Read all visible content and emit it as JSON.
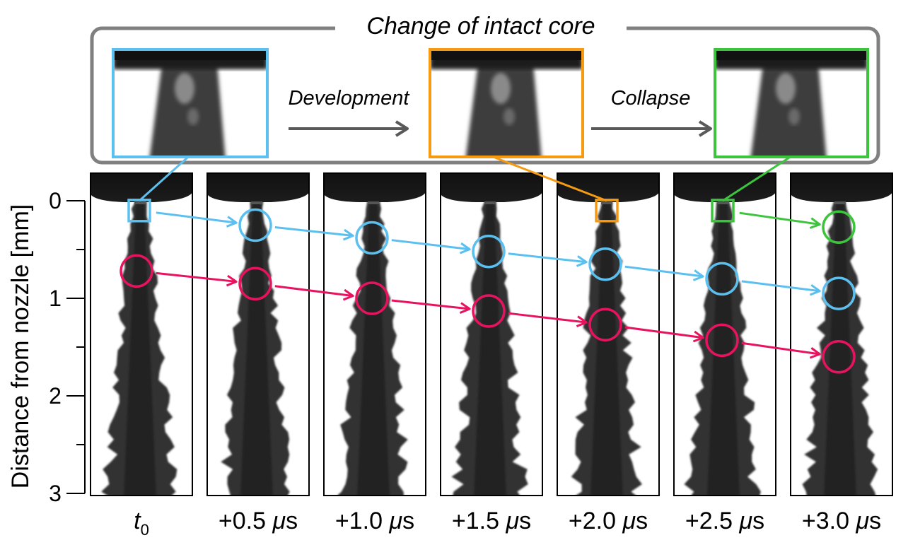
{
  "figure": {
    "title": "Change of intact core",
    "stages": [
      {
        "label": "Development"
      },
      {
        "label": "Collapse"
      }
    ],
    "insets": [
      {
        "name": "inset-t0",
        "color": "#5bc0f0",
        "panel_index": 0
      },
      {
        "name": "inset-2us",
        "color": "#f59a12",
        "panel_index": 4
      },
      {
        "name": "inset-2.5us",
        "color": "#3cc43c",
        "panel_index": 5
      }
    ],
    "colors": {
      "blue": "#5bc0f0",
      "pink": "#e8135e",
      "orange": "#f59a12",
      "green": "#3cc43c",
      "frame_gray": "#808080",
      "arrow_gray": "#595959"
    }
  },
  "axis": {
    "title": "Distance from nozzle [mm]",
    "ylim": [
      0,
      3
    ],
    "major_ticks": [
      0,
      1,
      2,
      3
    ],
    "minor_ticks": [
      0.5,
      1.5,
      2.5
    ],
    "tick_labels": [
      "0",
      "1",
      "2",
      "3"
    ]
  },
  "panels": [
    {
      "time_prefix": "t",
      "time_sub": "0",
      "time_unit": ""
    },
    {
      "time_prefix": "+0.5 ",
      "time_sub": "",
      "time_unit": "μs"
    },
    {
      "time_prefix": "+1.0 ",
      "time_sub": "",
      "time_unit": "μs"
    },
    {
      "time_prefix": "+1.5 ",
      "time_sub": "",
      "time_unit": "μs"
    },
    {
      "time_prefix": "+2.0 ",
      "time_sub": "",
      "time_unit": "μs"
    },
    {
      "time_prefix": "+2.5 ",
      "time_sub": "",
      "time_unit": "μs"
    },
    {
      "time_prefix": "+3.0 ",
      "time_sub": "",
      "time_unit": "μs"
    }
  ],
  "tracks": [
    {
      "name": "blue-track",
      "color": "#5bc0f0",
      "markers": [
        {
          "panel": 0,
          "mm": 0.1,
          "shape": "square"
        },
        {
          "panel": 1,
          "mm": 0.25,
          "shape": "circle"
        },
        {
          "panel": 2,
          "mm": 0.38,
          "shape": "circle"
        },
        {
          "panel": 3,
          "mm": 0.52,
          "shape": "circle"
        },
        {
          "panel": 4,
          "mm": 0.65,
          "shape": "circle"
        },
        {
          "panel": 5,
          "mm": 0.8,
          "shape": "circle"
        },
        {
          "panel": 6,
          "mm": 0.95,
          "shape": "circle"
        }
      ]
    },
    {
      "name": "pink-track",
      "color": "#e8135e",
      "markers": [
        {
          "panel": 0,
          "mm": 0.72,
          "shape": "circle"
        },
        {
          "panel": 1,
          "mm": 0.85,
          "shape": "circle"
        },
        {
          "panel": 2,
          "mm": 1.0,
          "shape": "circle"
        },
        {
          "panel": 3,
          "mm": 1.13,
          "shape": "circle"
        },
        {
          "panel": 4,
          "mm": 1.27,
          "shape": "circle"
        },
        {
          "panel": 5,
          "mm": 1.43,
          "shape": "circle"
        },
        {
          "panel": 6,
          "mm": 1.6,
          "shape": "circle"
        }
      ]
    },
    {
      "name": "orange-marker",
      "color": "#f59a12",
      "markers": [
        {
          "panel": 4,
          "mm": 0.1,
          "shape": "square"
        }
      ]
    },
    {
      "name": "green-track",
      "color": "#3cc43c",
      "markers": [
        {
          "panel": 5,
          "mm": 0.1,
          "shape": "square"
        },
        {
          "panel": 6,
          "mm": 0.27,
          "shape": "circle"
        }
      ]
    }
  ]
}
